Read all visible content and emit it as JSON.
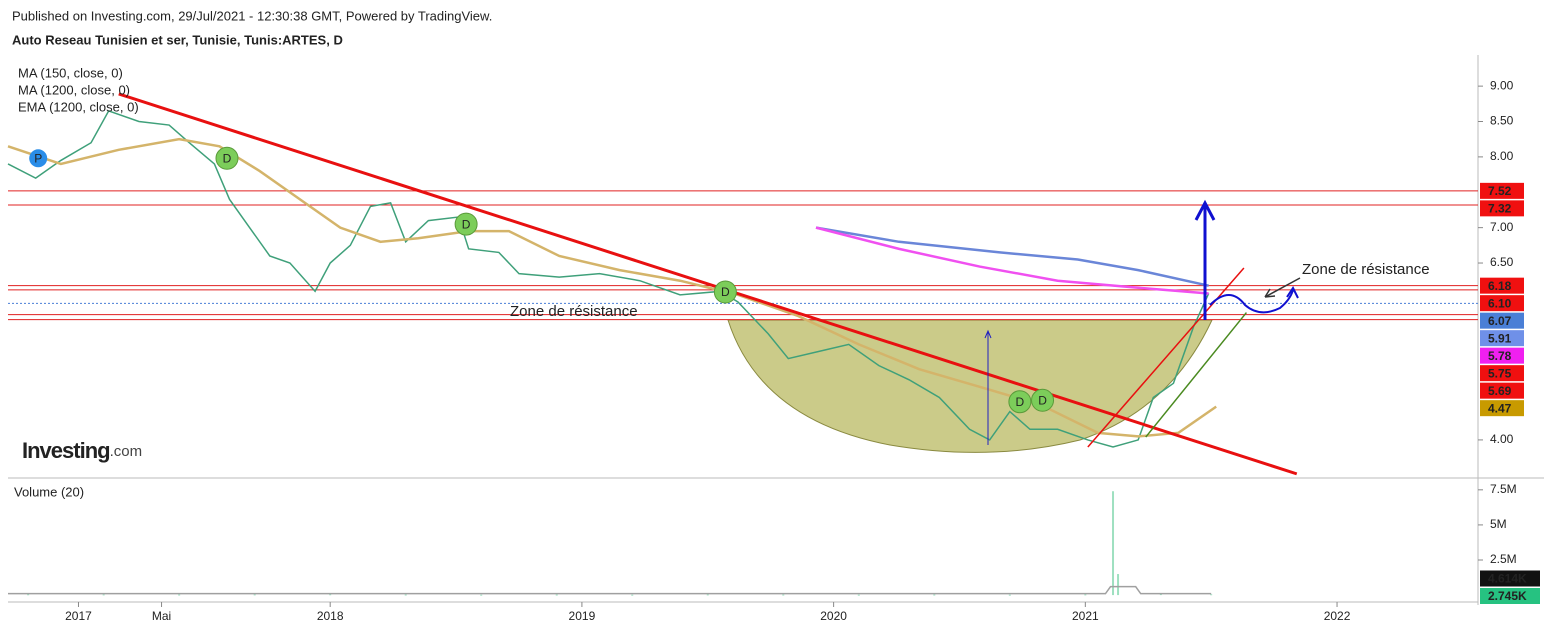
{
  "header": {
    "published": "Published on Investing.com, 29/Jul/2021 - 12:30:38 GMT, Powered by TradingView.",
    "symbol": "Auto Reseau Tunisien et ser, Tunisie, Tunis:ARTES, D"
  },
  "logo": {
    "brand": "Investing",
    "suffix": ".com"
  },
  "chart_data": [
    {
      "type": "line",
      "color": "#3fa07a",
      "x": [
        2016.72,
        2016.83,
        2016.93,
        2017.05,
        2017.12,
        2017.24,
        2017.36,
        2017.44,
        2017.54,
        2017.6,
        2017.68,
        2017.76,
        2017.84,
        2017.94,
        2018.0,
        2018.08,
        2018.16,
        2018.24,
        2018.3,
        2018.39,
        2018.51,
        2018.55,
        2018.67,
        2018.75,
        2018.91,
        2019.07,
        2019.23,
        2019.39,
        2019.55,
        2019.62,
        2019.74,
        2019.82,
        2019.94,
        2020.06,
        2020.18,
        2020.3,
        2020.42,
        2020.54,
        2020.62,
        2020.7,
        2020.78,
        2020.89,
        2021.01,
        2021.11,
        2021.21,
        2021.27,
        2021.35,
        2021.43,
        2021.49
      ],
      "values": [
        7.9,
        7.7,
        7.95,
        8.2,
        8.65,
        8.5,
        8.45,
        8.2,
        7.9,
        7.4,
        7.0,
        6.6,
        6.5,
        6.1,
        6.5,
        6.75,
        7.3,
        7.35,
        6.8,
        7.1,
        7.15,
        6.7,
        6.65,
        6.35,
        6.3,
        6.35,
        6.25,
        6.05,
        6.1,
        5.95,
        5.5,
        5.15,
        5.25,
        5.35,
        5.05,
        4.85,
        4.6,
        4.15,
        4.0,
        4.4,
        4.15,
        4.15,
        4.0,
        3.9,
        4.0,
        4.6,
        4.8,
        5.6,
        6.07
      ],
      "series": [
        {
          "name": "MA (150, close, 0)",
          "color": "#d4b46a",
          "x": [
            2016.72,
            2016.93,
            2017.16,
            2017.4,
            2017.56,
            2017.72,
            2017.88,
            2018.04,
            2018.2,
            2018.35,
            2018.55,
            2018.71,
            2018.91,
            2019.15,
            2019.39,
            2019.62,
            2019.86,
            2020.1,
            2020.34,
            2020.58,
            2020.82,
            2021.05,
            2021.21,
            2021.37,
            2021.52
          ],
          "values": [
            8.15,
            7.9,
            8.1,
            8.25,
            8.15,
            7.8,
            7.4,
            7.0,
            6.8,
            6.85,
            6.95,
            6.95,
            6.6,
            6.4,
            6.25,
            6.05,
            5.75,
            5.35,
            5.0,
            4.75,
            4.5,
            4.1,
            4.05,
            4.1,
            4.47
          ]
        },
        {
          "name": "MA (1200, close, 0)",
          "color": "#6a86d8",
          "x": [
            2019.93,
            2020.26,
            2020.66,
            2020.97,
            2021.21,
            2021.49
          ],
          "values": [
            7.0,
            6.8,
            6.65,
            6.55,
            6.4,
            6.18
          ]
        },
        {
          "name": "EMA (1200, close, 0)",
          "color": "#f050f0",
          "x": [
            2019.93,
            2020.26,
            2020.58,
            2020.89,
            2021.21,
            2021.49
          ],
          "values": [
            7.0,
            6.7,
            6.45,
            6.25,
            6.15,
            6.07
          ]
        }
      ],
      "trendlines": [
        {
          "color": "#e81010",
          "x": [
            2017.16,
            2021.84
          ],
          "values": [
            8.89,
            3.52
          ]
        },
        {
          "color": "#e81010",
          "x": [
            2021.01,
            2021.63
          ],
          "values": [
            3.9,
            6.43
          ]
        },
        {
          "color": "#4a8a20",
          "x": [
            2021.24,
            2021.64
          ],
          "values": [
            4.04,
            5.8
          ]
        }
      ],
      "hlines": [
        {
          "value": 7.52,
          "color": "#e02020"
        },
        {
          "value": 7.32,
          "color": "#e02020"
        },
        {
          "value": 6.18,
          "color": "#e02020"
        },
        {
          "value": 6.12,
          "color": "#e02020"
        },
        {
          "value": 5.93,
          "color": "#4a7fd6"
        },
        {
          "value": 5.77,
          "color": "#e02020"
        },
        {
          "value": 5.7,
          "color": "#e02020"
        }
      ],
      "markers": [
        {
          "x": 2016.84,
          "value": 7.98,
          "label": "P",
          "color": "#2a8de8"
        },
        {
          "x": 2017.59,
          "value": 7.98,
          "label": "D",
          "color": "#7ccd5a"
        },
        {
          "x": 2018.54,
          "value": 7.05,
          "label": "D",
          "color": "#7ccd5a"
        },
        {
          "x": 2019.57,
          "value": 6.09,
          "label": "D",
          "color": "#7ccd5a"
        },
        {
          "x": 2020.74,
          "value": 4.54,
          "label": "D",
          "color": "#7ccd5a"
        },
        {
          "x": 2020.83,
          "value": 4.56,
          "label": "D",
          "color": "#7ccd5a"
        }
      ],
      "annotations": [
        "Zone de résistance",
        "Zone de résistance"
      ],
      "price_tags": [
        {
          "value": 7.52,
          "label": "7.52",
          "color": "#f01010"
        },
        {
          "value": 7.32,
          "label": "7.32",
          "color": "#f01010"
        },
        {
          "value": 6.18,
          "label": "6.18",
          "color": "#f01010"
        },
        {
          "value": 6.1,
          "label": "6.10",
          "color": "#f01010"
        },
        {
          "value": 6.07,
          "label": "6.07",
          "color": "#4a7fd6"
        },
        {
          "value": 5.91,
          "label": "5.91",
          "color": "#6f90e8"
        },
        {
          "value": 5.78,
          "label": "5.78",
          "color": "#f020f0"
        },
        {
          "value": 5.75,
          "label": "5.75",
          "color": "#f01010"
        },
        {
          "value": 5.69,
          "label": "5.69",
          "color": "#f01010"
        },
        {
          "value": 4.47,
          "label": "4.47",
          "color": "#c89a00"
        }
      ],
      "xlim": [
        2016.72,
        2022.56
      ],
      "ylim": [
        3.49,
        9.44
      ],
      "yticks": [
        {
          "value": 4,
          "label": "4.00"
        },
        {
          "value": 6.5,
          "label": "6.50"
        },
        {
          "value": 7,
          "label": "7.00"
        },
        {
          "value": 8,
          "label": "8.00"
        },
        {
          "value": 8.5,
          "label": "8.50"
        },
        {
          "value": 9,
          "label": "9.00"
        }
      ],
      "xticks": [
        2017,
        {
          "value": 2017.33,
          "label": "Mai"
        },
        2018,
        2019,
        2020,
        2021,
        2022
      ]
    },
    {
      "type": "bar",
      "title": "Volume (20)",
      "color": "#9ee0c0",
      "x": [
        2016.8,
        2017.1,
        2017.4,
        2017.7,
        2018.0,
        2018.3,
        2018.6,
        2018.9,
        2019.2,
        2019.5,
        2019.8,
        2020.1,
        2020.4,
        2020.7,
        2021.0,
        2021.11,
        2021.13,
        2021.3,
        2021.5
      ],
      "values": [
        60000,
        50000,
        40000,
        50000,
        60000,
        40000,
        30000,
        40000,
        30000,
        50000,
        40000,
        30000,
        40000,
        30000,
        50000,
        7400000,
        1500000,
        100000,
        60000
      ],
      "series": [
        {
          "color": "#a0a0a0",
          "x": [
            2016.72,
            2021.08,
            2021.1,
            2021.2,
            2021.22,
            2021.5
          ],
          "values": [
            100000,
            100000,
            600000,
            600000,
            100000,
            100000
          ]
        }
      ],
      "price_tags": [
        {
          "value": 4614,
          "label": "4.614K",
          "color": "#111111"
        },
        {
          "value": 2745,
          "label": "2.745K",
          "color": "#26c281"
        }
      ],
      "xlim": [
        2016.72,
        2022.56
      ],
      "ylim": [
        -350000,
        8200000
      ],
      "yticks": [
        {
          "value": 2500000,
          "label": "2.5M"
        },
        {
          "value": 5000000,
          "label": "5M"
        },
        {
          "value": 7500000,
          "label": "7.5M"
        }
      ]
    }
  ]
}
